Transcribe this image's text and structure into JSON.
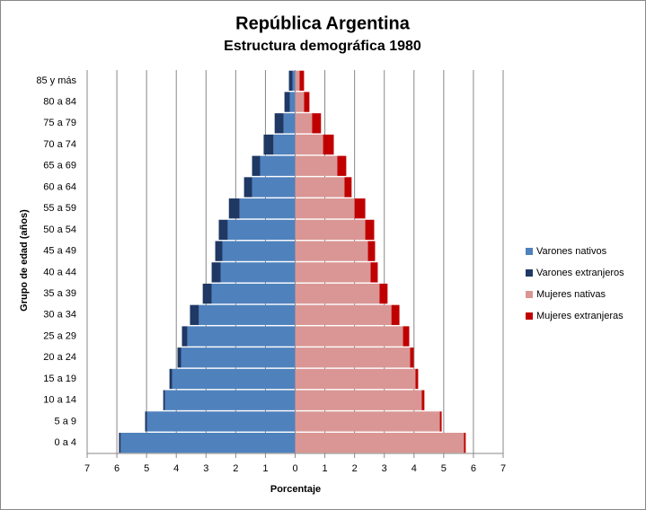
{
  "chart_data": {
    "type": "pyramid",
    "title": "República Argentina",
    "subtitle": "Estructura demográfica 1980",
    "x_label": "Porcentaje",
    "y_label": "Grupo de edad (años)",
    "categories": [
      "0 a 4",
      "5 a 9",
      "10 a 14",
      "15 a 19",
      "20 a 24",
      "25 a 29",
      "30 a 34",
      "35 a 39",
      "40 a 44",
      "45 a 49",
      "50 a 54",
      "55 a 59",
      "60 a 64",
      "65 a 69",
      "70 a 74",
      "75 a 79",
      "80 a 84",
      "85 y más"
    ],
    "series": [
      {
        "name": "Varones nativos",
        "color": "#4f81bd",
        "values": [
          -5.87,
          -4.99,
          -4.38,
          -4.14,
          -3.84,
          -3.63,
          -3.24,
          -2.81,
          -2.51,
          -2.45,
          -2.27,
          -1.87,
          -1.45,
          -1.18,
          -0.73,
          -0.39,
          -0.18,
          -0.09
        ]
      },
      {
        "name": "Varones extranjeros",
        "color": "#1f3864",
        "values": [
          -0.06,
          -0.06,
          -0.06,
          -0.09,
          -0.12,
          -0.18,
          -0.3,
          -0.3,
          -0.3,
          -0.24,
          -0.3,
          -0.36,
          -0.27,
          -0.27,
          -0.33,
          -0.3,
          -0.18,
          -0.12
        ]
      },
      {
        "name": "Mujeres nativas",
        "color": "#d99694",
        "values": [
          5.68,
          4.87,
          4.26,
          4.05,
          3.87,
          3.63,
          3.24,
          2.84,
          2.54,
          2.45,
          2.36,
          2.0,
          1.66,
          1.42,
          0.94,
          0.57,
          0.3,
          0.15
        ]
      },
      {
        "name": "Mujeres extranjeras",
        "color": "#c00000",
        "values": [
          0.06,
          0.06,
          0.09,
          0.09,
          0.12,
          0.21,
          0.27,
          0.27,
          0.24,
          0.24,
          0.3,
          0.36,
          0.24,
          0.3,
          0.36,
          0.3,
          0.18,
          0.15
        ]
      }
    ],
    "xlim": [
      -7,
      7
    ],
    "xticks": [
      {
        "value": -7,
        "label": "7"
      },
      {
        "value": -6,
        "label": "6"
      },
      {
        "value": -5,
        "label": "5"
      },
      {
        "value": -4,
        "label": "4"
      },
      {
        "value": -3,
        "label": "3"
      },
      {
        "value": -2,
        "label": "2"
      },
      {
        "value": -1,
        "label": "1"
      },
      0,
      1,
      2,
      3,
      4,
      5,
      6,
      7
    ],
    "grid": true,
    "legend": "right"
  }
}
